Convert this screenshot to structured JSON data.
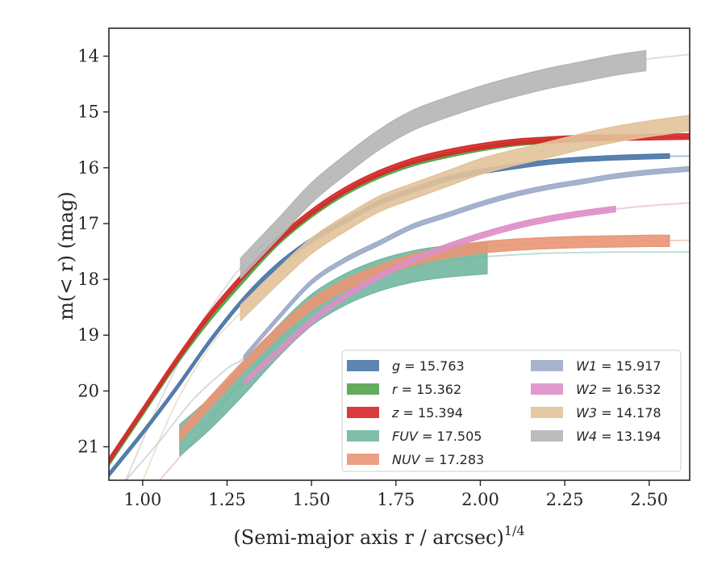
{
  "chart_data": {
    "type": "line",
    "xlabel": "(Semi-major axis r / arcsec)",
    "xlabel_exponent": "1/4",
    "ylabel": "m(< r) (mag)",
    "xlim": [
      0.9,
      2.62
    ],
    "ylim": [
      21.6,
      13.5
    ],
    "y_inverted": true,
    "grid": false,
    "legend_position": "lower-right",
    "x_ticks": [
      "1.00",
      "1.25",
      "1.50",
      "1.75",
      "2.00",
      "2.25",
      "2.50"
    ],
    "x_tick_values": [
      1.0,
      1.25,
      1.5,
      1.75,
      2.0,
      2.25,
      2.5
    ],
    "y_ticks": [
      "14",
      "15",
      "16",
      "17",
      "18",
      "19",
      "20",
      "21"
    ],
    "y_tick_values": [
      14,
      15,
      16,
      17,
      18,
      19,
      20,
      21
    ],
    "series": [
      {
        "name": "g",
        "legend_value": "15.763",
        "color": "#4c78a8",
        "model": {
          "x": [
            0.9,
            1.0,
            1.1,
            1.2,
            1.3,
            1.4,
            1.5,
            1.6,
            1.7,
            1.8,
            1.9,
            2.0,
            2.1,
            2.2,
            2.3,
            2.4,
            2.5,
            2.62
          ],
          "y": [
            21.5,
            20.75,
            19.95,
            19.1,
            18.35,
            17.75,
            17.3,
            16.95,
            16.63,
            16.4,
            16.2,
            16.07,
            15.98,
            15.9,
            15.85,
            15.82,
            15.8,
            15.79
          ]
        },
        "data": {
          "x": [
            0.9,
            1.0,
            1.1,
            1.2,
            1.3,
            1.4,
            1.5,
            1.6,
            1.7,
            1.8,
            1.9,
            2.0,
            2.1,
            2.2,
            2.3,
            2.4,
            2.5,
            2.56
          ],
          "y": [
            21.5,
            20.75,
            19.95,
            19.1,
            18.35,
            17.75,
            17.3,
            16.95,
            16.63,
            16.4,
            16.2,
            16.07,
            15.98,
            15.9,
            15.85,
            15.82,
            15.8,
            15.79
          ],
          "err": 0.04
        }
      },
      {
        "name": "r",
        "legend_value": "15.362",
        "color": "#54a24b",
        "model": {
          "x": [
            0.9,
            1.0,
            1.1,
            1.2,
            1.3,
            1.4,
            1.5,
            1.6,
            1.7,
            1.8,
            1.9,
            2.0,
            2.1,
            2.2,
            2.3,
            2.4,
            2.5,
            2.62
          ],
          "y": [
            21.3,
            20.4,
            19.5,
            18.7,
            18.0,
            17.35,
            16.85,
            16.45,
            16.15,
            15.93,
            15.78,
            15.66,
            15.57,
            15.52,
            15.49,
            15.47,
            15.46,
            15.45
          ]
        },
        "data": {
          "x": [
            0.9,
            1.0,
            1.1,
            1.2,
            1.3,
            1.4,
            1.5,
            1.6,
            1.7,
            1.8,
            1.9,
            2.0,
            2.1,
            2.2,
            2.3
          ],
          "y": [
            21.3,
            20.4,
            19.5,
            18.7,
            18.0,
            17.35,
            16.85,
            16.45,
            16.15,
            15.93,
            15.78,
            15.66,
            15.57,
            15.52,
            15.49
          ],
          "err": 0.04
        }
      },
      {
        "name": "z",
        "legend_value": "15.394",
        "color": "#d62728",
        "model": {
          "x": [
            0.9,
            1.0,
            1.1,
            1.2,
            1.3,
            1.4,
            1.5,
            1.6,
            1.7,
            1.8,
            1.9,
            2.0,
            2.1,
            2.2,
            2.3,
            2.4,
            2.5,
            2.62
          ],
          "y": [
            21.25,
            20.35,
            19.45,
            18.62,
            17.92,
            17.3,
            16.8,
            16.4,
            16.1,
            15.88,
            15.73,
            15.62,
            15.54,
            15.5,
            15.47,
            15.46,
            15.45,
            15.45
          ]
        },
        "data": {
          "x": [
            0.9,
            1.0,
            1.1,
            1.2,
            1.3,
            1.4,
            1.5,
            1.6,
            1.7,
            1.8,
            1.9,
            2.0,
            2.1,
            2.2,
            2.3,
            2.4,
            2.5,
            2.62
          ],
          "y": [
            21.25,
            20.35,
            19.45,
            18.62,
            17.92,
            17.3,
            16.8,
            16.4,
            16.1,
            15.88,
            15.73,
            15.62,
            15.54,
            15.5,
            15.47,
            15.46,
            15.45,
            15.44
          ],
          "err": 0.05
        }
      },
      {
        "name": "FUV",
        "legend_value": "17.505",
        "color": "#72b7a1",
        "model": {
          "x": [
            1.11,
            1.2,
            1.3,
            1.4,
            1.5,
            1.6,
            1.7,
            1.8,
            1.9,
            2.0,
            2.1,
            2.2,
            2.3,
            2.4,
            2.5,
            2.62
          ],
          "y": [
            20.95,
            20.45,
            19.8,
            19.15,
            18.6,
            18.2,
            17.95,
            17.78,
            17.67,
            17.6,
            17.56,
            17.53,
            17.52,
            17.51,
            17.51,
            17.51
          ]
        },
        "data": {
          "x": [
            1.11,
            1.2,
            1.3,
            1.4,
            1.5,
            1.6,
            1.7,
            1.8,
            1.9,
            2.02
          ],
          "y": [
            20.88,
            20.4,
            19.78,
            19.12,
            18.55,
            18.18,
            17.93,
            17.77,
            17.68,
            17.62
          ],
          "err": 0.28
        }
      },
      {
        "name": "NUV",
        "legend_value": "17.283",
        "color": "#e99675",
        "model": {
          "x": [
            1.11,
            1.2,
            1.3,
            1.4,
            1.5,
            1.6,
            1.7,
            1.8,
            1.9,
            2.0,
            2.1,
            2.2,
            2.3,
            2.4,
            2.5,
            2.62
          ],
          "y": [
            20.8,
            20.2,
            19.55,
            18.95,
            18.45,
            18.1,
            17.85,
            17.65,
            17.52,
            17.43,
            17.38,
            17.35,
            17.33,
            17.32,
            17.31,
            17.3
          ]
        },
        "data": {
          "x": [
            1.11,
            1.2,
            1.3,
            1.4,
            1.5,
            1.6,
            1.7,
            1.8,
            1.9,
            2.0,
            2.1,
            2.2,
            2.3,
            2.4,
            2.5,
            2.56
          ],
          "y": [
            20.8,
            20.2,
            19.55,
            18.95,
            18.45,
            18.1,
            17.85,
            17.65,
            17.52,
            17.43,
            17.38,
            17.35,
            17.33,
            17.32,
            17.31,
            17.31
          ],
          "err": 0.1
        }
      },
      {
        "name": "W1",
        "legend_value": "15.917",
        "color": "#9eacc9",
        "model": {
          "x": [
            0.95,
            1.05,
            1.15,
            1.25,
            1.3,
            1.4,
            1.5,
            1.6,
            1.7,
            1.8,
            1.9,
            2.0,
            2.1,
            2.2,
            2.3,
            2.4,
            2.5,
            2.62
          ],
          "y": [
            21.6,
            20.9,
            20.15,
            19.6,
            19.4,
            18.7,
            18.05,
            17.65,
            17.35,
            17.05,
            16.85,
            16.65,
            16.48,
            16.35,
            16.25,
            16.15,
            16.08,
            16.02
          ]
        },
        "data": {
          "x": [
            1.3,
            1.4,
            1.5,
            1.6,
            1.7,
            1.8,
            1.9,
            2.0,
            2.1,
            2.2,
            2.3,
            2.4,
            2.5,
            2.62
          ],
          "y": [
            19.4,
            18.7,
            18.05,
            17.65,
            17.35,
            17.05,
            16.85,
            16.65,
            16.48,
            16.35,
            16.25,
            16.15,
            16.08,
            16.02
          ],
          "err": 0.04
        }
      },
      {
        "name": "W2",
        "legend_value": "16.532",
        "color": "#de8fc6",
        "model": {
          "x": [
            1.05,
            1.15,
            1.25,
            1.3,
            1.4,
            1.5,
            1.6,
            1.7,
            1.8,
            1.9,
            2.0,
            2.1,
            2.2,
            2.3,
            2.4,
            2.5,
            2.62
          ],
          "y": [
            21.6,
            20.9,
            20.15,
            19.85,
            19.3,
            18.75,
            18.3,
            17.95,
            17.65,
            17.42,
            17.22,
            17.05,
            16.92,
            16.82,
            16.74,
            16.68,
            16.63
          ]
        },
        "data": {
          "x": [
            1.3,
            1.4,
            1.5,
            1.6,
            1.7,
            1.8,
            1.9,
            2.0,
            2.1,
            2.2,
            2.3,
            2.4
          ],
          "y": [
            19.85,
            19.3,
            18.75,
            18.3,
            17.95,
            17.65,
            17.42,
            17.22,
            17.05,
            16.92,
            16.82,
            16.74
          ],
          "err": 0.05
        }
      },
      {
        "name": "W3",
        "legend_value": "14.178",
        "color": "#e2c29a",
        "model": {
          "x": [
            1.0,
            1.1,
            1.2,
            1.29,
            1.4,
            1.5,
            1.6,
            1.7,
            1.8,
            1.9,
            2.0,
            2.1,
            2.2,
            2.3,
            2.4,
            2.5,
            2.62
          ],
          "y": [
            21.6,
            20.2,
            19.2,
            18.6,
            17.95,
            17.4,
            17.0,
            16.65,
            16.42,
            16.2,
            15.98,
            15.82,
            15.68,
            15.53,
            15.4,
            15.3,
            15.2
          ]
        },
        "data": {
          "x": [
            1.29,
            1.4,
            1.5,
            1.6,
            1.7,
            1.8,
            1.9,
            2.0,
            2.1,
            2.2,
            2.3,
            2.4,
            2.5,
            2.62
          ],
          "y": [
            18.6,
            17.95,
            17.4,
            17.0,
            16.65,
            16.42,
            16.2,
            15.98,
            15.82,
            15.68,
            15.53,
            15.4,
            15.3,
            15.2
          ],
          "err": 0.14
        }
      },
      {
        "name": "W4",
        "legend_value": "13.194",
        "color": "#b5b5b5",
        "model": {
          "x": [
            0.95,
            1.05,
            1.15,
            1.25,
            1.29,
            1.4,
            1.5,
            1.6,
            1.7,
            1.8,
            1.9,
            2.0,
            2.1,
            2.2,
            2.3,
            2.4,
            2.5,
            2.62
          ],
          "y": [
            21.6,
            20.2,
            19.0,
            18.1,
            17.8,
            17.1,
            16.45,
            15.95,
            15.5,
            15.15,
            14.92,
            14.72,
            14.55,
            14.4,
            14.28,
            14.16,
            14.05,
            13.97
          ]
        },
        "data": {
          "x": [
            1.29,
            1.4,
            1.5,
            1.6,
            1.7,
            1.8,
            1.9,
            2.0,
            2.1,
            2.2,
            2.3,
            2.4,
            2.49
          ],
          "y": [
            17.8,
            17.1,
            16.45,
            15.95,
            15.5,
            15.15,
            14.92,
            14.72,
            14.55,
            14.4,
            14.28,
            14.16,
            14.08
          ],
          "err": 0.18
        }
      }
    ]
  }
}
